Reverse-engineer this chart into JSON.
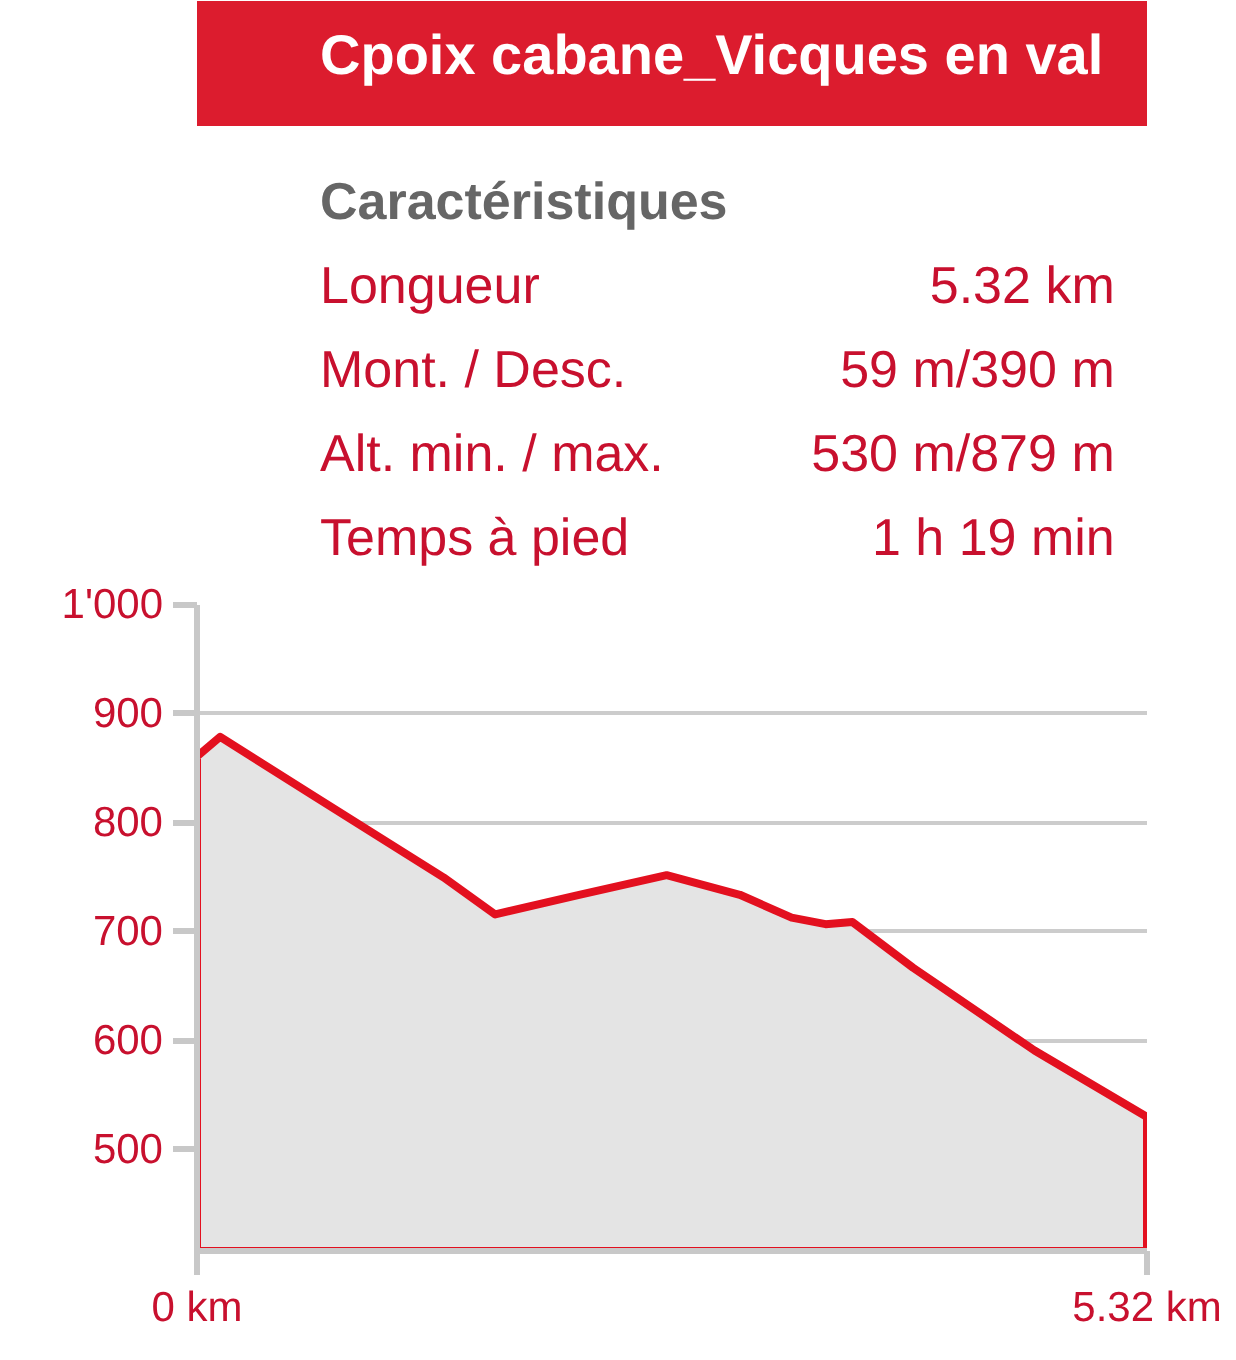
{
  "chart_data": [
    {
      "type": "other",
      "title": "Cpoix cabane_Vicques en val",
      "subtitle": "Caractéristiques",
      "annotations": [
        "Longueur",
        "5.32 km",
        "Mont. / Desc.",
        "59 m/390 m",
        "Alt. min. / max.",
        "530 m/879 m",
        "Temps à pied",
        "1 h 19 min"
      ]
    },
    {
      "type": "area",
      "x": [
        0,
        0.13,
        0.66,
        1.38,
        1.67,
        2.14,
        2.63,
        3.04,
        3.33,
        3.52,
        3.67,
        4.01,
        4.69,
        5.32
      ],
      "series": [
        {
          "color": "#e3101f",
          "values": [
            861,
            879,
            824,
            750,
            716,
            734,
            752,
            734,
            713,
            707,
            709,
            667,
            591,
            530
          ]
        }
      ],
      "xlim": [
        0,
        5.32
      ],
      "xticks": [
        {
          "value": 0,
          "label": "0 km"
        },
        {
          "value": 5.32,
          "label": "5.32 km"
        }
      ],
      "ylim": [
        407,
        1000
      ],
      "yticks": [
        {
          "value": 500,
          "label": "500"
        },
        {
          "value": 600,
          "label": "600"
        },
        {
          "value": 700,
          "label": "700"
        },
        {
          "value": 800,
          "label": "800"
        },
        {
          "value": 900,
          "label": "900"
        },
        {
          "value": 1000,
          "label": "1'000"
        }
      ],
      "grid": "y"
    }
  ]
}
